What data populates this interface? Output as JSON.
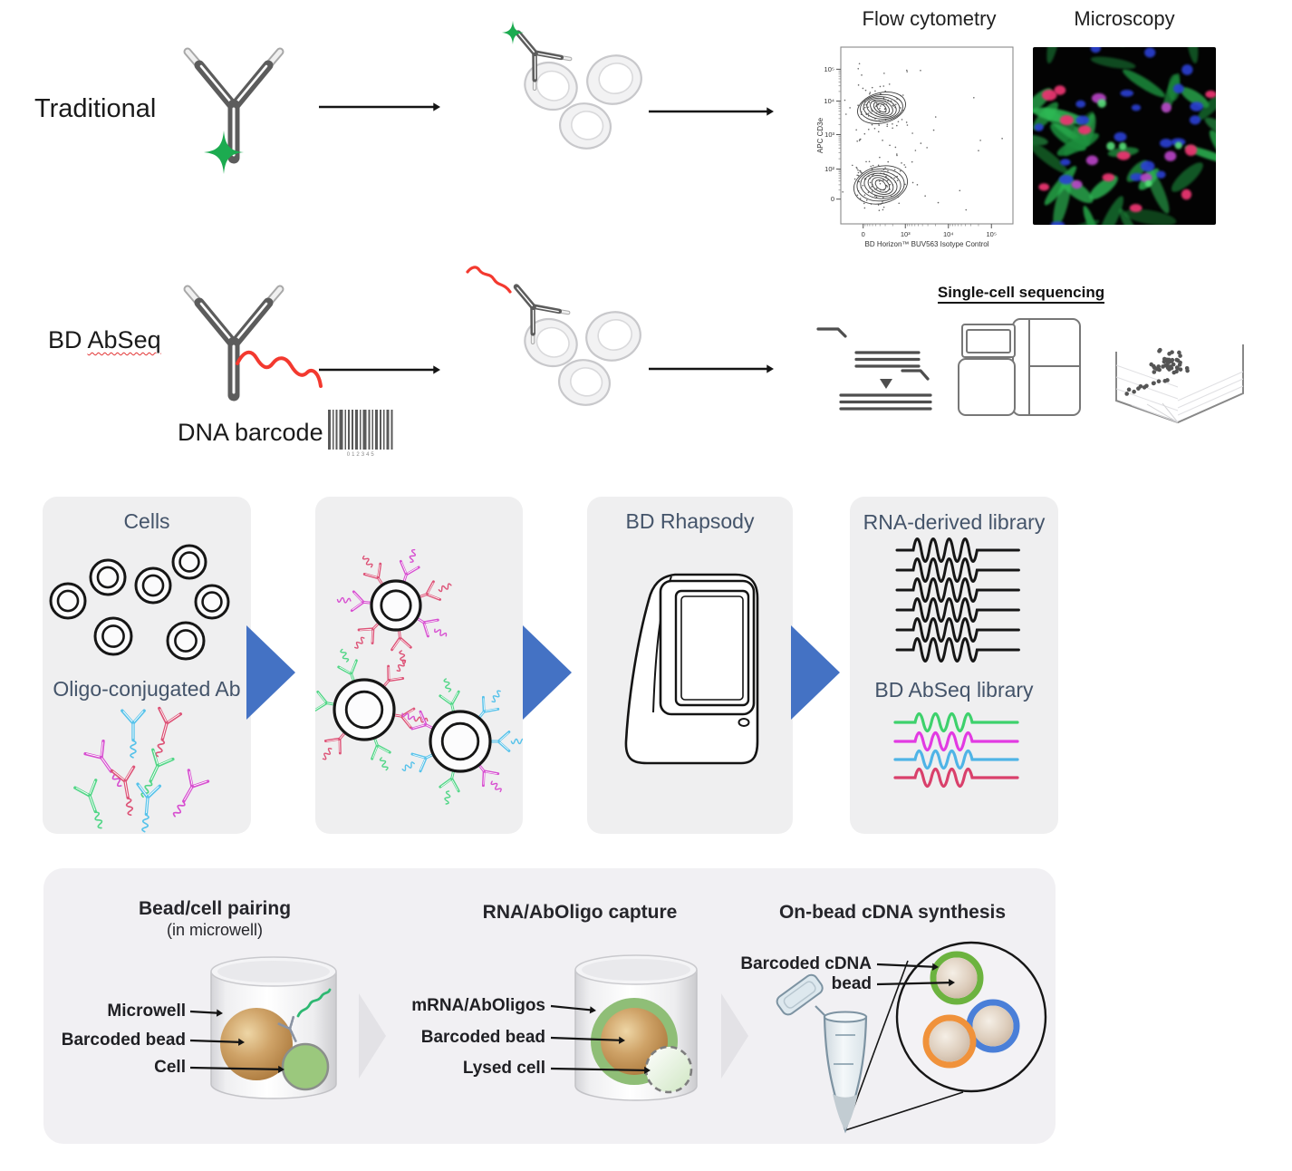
{
  "row_traditional": {
    "label": "Traditional"
  },
  "row_abseq": {
    "bd": "BD",
    "abseq": "AbSeq",
    "dna_barcode": "DNA barcode",
    "barcode_digits": "012345"
  },
  "outputs": {
    "flow": {
      "title": "Flow cytometry",
      "y_axis": "APC CD3e",
      "x_axis": "BD Horizon™ BUV563 Isotype Control",
      "y_ticks": [
        "10⁵",
        "10⁴",
        "10³",
        "10²",
        "0"
      ],
      "x_ticks": [
        "0",
        "10³",
        "10⁴",
        "10⁵"
      ]
    },
    "microscopy": {
      "title": "Microscopy"
    },
    "sequencing": {
      "title": "Single-cell sequencing"
    }
  },
  "workflow_panels": {
    "cells": {
      "title": "Cells",
      "subtitle": "Oligo-conjugated Ab"
    },
    "rhapsody": {
      "title": "BD Rhapsody"
    },
    "libraries": {
      "title": "RNA-derived library",
      "subtitle": "BD AbSeq library"
    }
  },
  "bottom_sections": {
    "pairing": {
      "title": "Bead/cell pairing",
      "subtitle": "(in microwell)",
      "labels": [
        "Microwell",
        "Barcoded bead",
        "Cell"
      ]
    },
    "capture": {
      "title": "RNA/AbOligo capture",
      "labels": [
        "mRNA/AbOligos",
        "Barcoded bead",
        "Lysed cell"
      ]
    },
    "synthesis": {
      "title": "On-bead cDNA synthesis",
      "labels": [
        "Barcoded cDNA",
        "bead"
      ]
    }
  },
  "colors": {
    "accent_blue": "#4472C4",
    "chevron_gray": "#e3e2e6",
    "panel_bg": "#efeff0",
    "bottom_panel_bg": "#f1f0f3",
    "header_slate": "#44546A",
    "star_green": "#1cab50",
    "oligo_red": "#f3392f",
    "squiggle_green": "#2eb872",
    "wave_black": "#161616",
    "ab_cyan": "#56C2EA",
    "ab_pink": "#DD5377",
    "ab_magenta": "#D74FD0",
    "ab_green": "#52D687",
    "bead_brown": "#b5813f",
    "cell_green": "#9bc87d",
    "ring_green": "#6cb33f",
    "ring_blue": "#4a7fd8",
    "ring_orange": "#f0923b"
  }
}
